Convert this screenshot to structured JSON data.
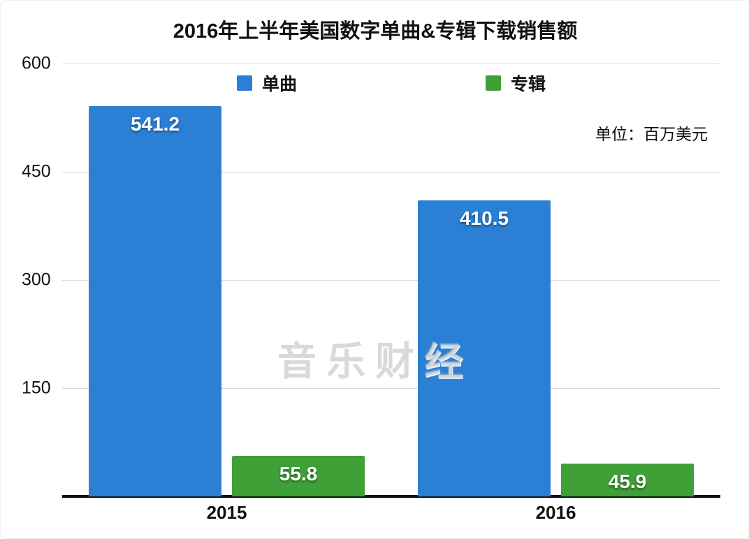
{
  "title": "2016年上半年美国数字单曲&专辑下载销售额",
  "unit_note": "单位：百万美元",
  "watermark": "音乐财经",
  "chart_data": {
    "type": "bar",
    "categories": [
      "2015",
      "2016"
    ],
    "series": [
      {
        "name": "单曲",
        "color": "#2b80d5",
        "values": [
          541.2,
          410.5
        ]
      },
      {
        "name": "专辑",
        "color": "#3fa037",
        "values": [
          55.8,
          45.9
        ]
      }
    ],
    "title": "2016年上半年美国数字单曲&专辑下载销售额",
    "xlabel": "",
    "ylabel": "",
    "ylim": [
      0,
      600
    ],
    "yticks": [
      150,
      300,
      450,
      600
    ],
    "grid": true,
    "legend_position": "top",
    "unit": "百万美元"
  }
}
